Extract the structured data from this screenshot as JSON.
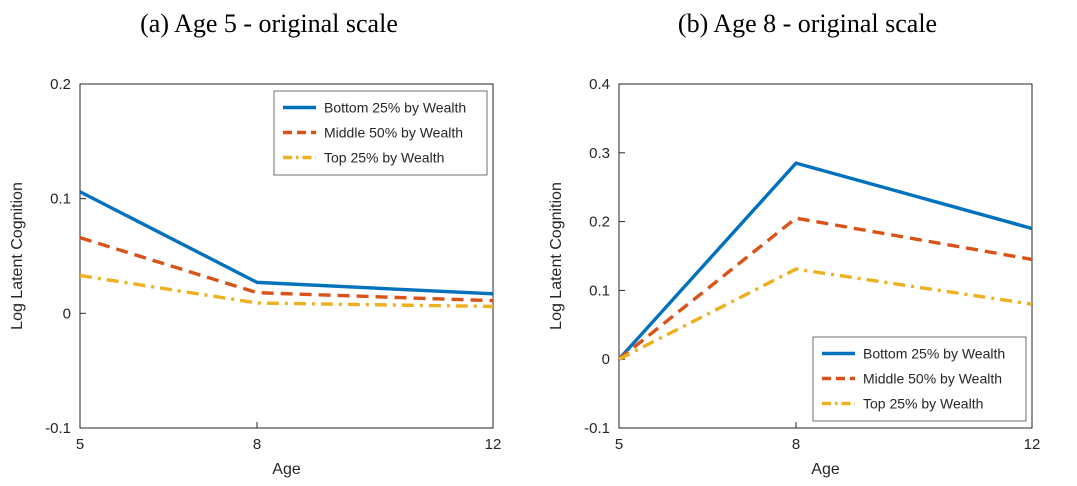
{
  "figure": {
    "background": "#ffffff",
    "axis_color": "#262626"
  },
  "chart_data": [
    {
      "type": "line",
      "title": "(a) Age 5 - original scale",
      "xlabel": "Age",
      "ylabel": "Log Latent Cognition",
      "x": [
        5,
        8,
        12
      ],
      "xlim": [
        5,
        12
      ],
      "xticks": [
        5,
        8,
        12
      ],
      "ylim": [
        -0.1,
        0.2
      ],
      "yticks": [
        -0.1,
        0,
        0.1,
        0.2
      ],
      "grid": false,
      "legend_position": "top-right",
      "series": [
        {
          "name": "Bottom 25% by Wealth",
          "color": "#0072BD",
          "style": "solid",
          "values": [
            0.106,
            0.027,
            0.017
          ]
        },
        {
          "name": "Middle 50% by Wealth",
          "color": "#D95319",
          "style": "dashed",
          "values": [
            0.066,
            0.018,
            0.011
          ]
        },
        {
          "name": "Top 25% by Wealth",
          "color": "#EDB120",
          "style": "dashdot",
          "values": [
            0.033,
            0.009,
            0.006
          ]
        }
      ]
    },
    {
      "type": "line",
      "title": "(b) Age 8 - original scale",
      "xlabel": "Age",
      "ylabel": "Log Latent Cognition",
      "x": [
        5,
        8,
        12
      ],
      "xlim": [
        5,
        12
      ],
      "xticks": [
        5,
        8,
        12
      ],
      "ylim": [
        -0.1,
        0.4
      ],
      "yticks": [
        -0.1,
        0,
        0.1,
        0.2,
        0.3,
        0.4
      ],
      "grid": false,
      "legend_position": "bottom-right",
      "series": [
        {
          "name": "Bottom 25% by Wealth",
          "color": "#0072BD",
          "style": "solid",
          "values": [
            0,
            0.285,
            0.19
          ]
        },
        {
          "name": "Middle 50% by Wealth",
          "color": "#D95319",
          "style": "dashed",
          "values": [
            0,
            0.205,
            0.145
          ]
        },
        {
          "name": "Top 25% by Wealth",
          "color": "#EDB120",
          "style": "dashdot",
          "values": [
            0,
            0.131,
            0.08
          ]
        }
      ]
    }
  ]
}
